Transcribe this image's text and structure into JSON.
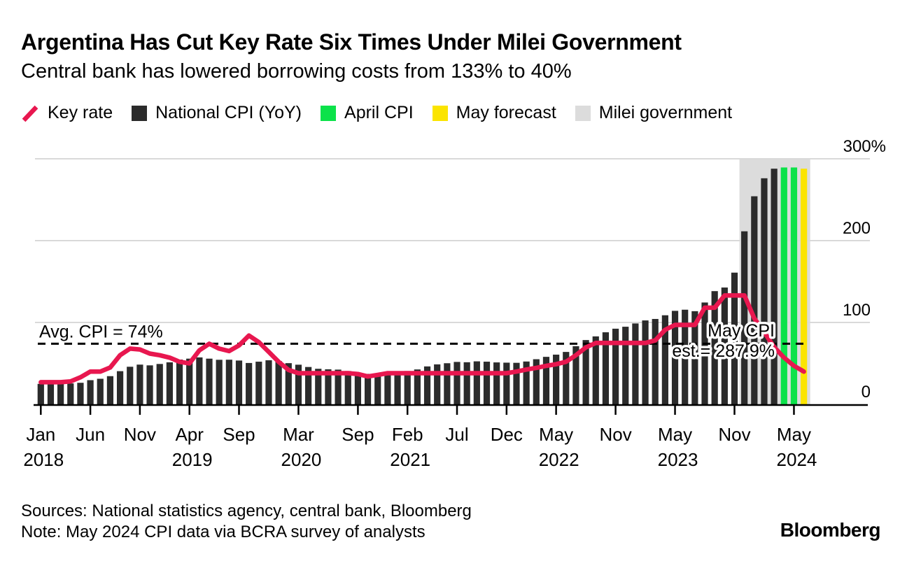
{
  "header": {
    "title": "Argentina Has Cut Key Rate Six Times Under Milei Government",
    "subtitle": "Central bank has lowered borrowing costs from 133% to 40%"
  },
  "legend": {
    "items": [
      {
        "id": "key-rate",
        "type": "line",
        "color": "#e8174f",
        "label": "Key rate"
      },
      {
        "id": "national-cpi",
        "type": "square",
        "color": "#2b2b2b",
        "label": "National CPI (YoY)"
      },
      {
        "id": "april-cpi",
        "type": "square",
        "color": "#0ce24a",
        "label": "April CPI"
      },
      {
        "id": "may-forecast",
        "type": "square",
        "color": "#fbe400",
        "label": "May forecast"
      },
      {
        "id": "milei-government",
        "type": "square",
        "color": "#dcdcdc",
        "label": "Milei government"
      }
    ]
  },
  "footer": {
    "sources": "Sources: National statistics agency, central bank, Bloomberg",
    "note": "Note: May 2024 CPI data via BCRA survey of analysts",
    "logo": "Bloomberg"
  },
  "chart_data": {
    "type": "bar+line",
    "unit": "percent YoY / percent rate",
    "y_axis": {
      "min": 0,
      "max": 300,
      "ticks": [
        {
          "value": 0,
          "label": "0"
        },
        {
          "value": 100,
          "label": "100"
        },
        {
          "value": 200,
          "label": "200"
        },
        {
          "value": 300,
          "label": "300%"
        }
      ]
    },
    "x_axis": {
      "ticks": [
        {
          "month": "Jan",
          "year": "2018",
          "index": 0
        },
        {
          "month": "Jun",
          "year": "",
          "index": 5
        },
        {
          "month": "Nov",
          "year": "",
          "index": 10
        },
        {
          "month": "Apr",
          "year": "2019",
          "index": 15
        },
        {
          "month": "Sep",
          "year": "",
          "index": 20
        },
        {
          "month": "Mar",
          "year": "2020",
          "index": 26
        },
        {
          "month": "Sep",
          "year": "",
          "index": 32
        },
        {
          "month": "Feb",
          "year": "2021",
          "index": 37
        },
        {
          "month": "Jul",
          "year": "",
          "index": 42
        },
        {
          "month": "Dec",
          "year": "",
          "index": 47
        },
        {
          "month": "May",
          "year": "2022",
          "index": 52
        },
        {
          "month": "Nov",
          "year": "",
          "index": 58
        },
        {
          "month": "May",
          "year": "2023",
          "index": 64
        },
        {
          "month": "Nov",
          "year": "",
          "index": 70
        },
        {
          "month": "May",
          "year": "2024",
          "index": 76
        }
      ]
    },
    "bars": {
      "cpi_yoy_by_year": {
        "2018": [
          25.0,
          25.4,
          25.4,
          25.5,
          26.3,
          29.5,
          31.2,
          34.4,
          40.5,
          45.9,
          48.5,
          47.6
        ],
        "2019": [
          49.3,
          51.3,
          54.7,
          55.8,
          57.3,
          55.8,
          54.4,
          54.5,
          53.5,
          50.5,
          52.1,
          53.8
        ],
        "2020": [
          52.9,
          50.3,
          48.4,
          45.6,
          43.4,
          42.8,
          42.4,
          40.7,
          36.6,
          37.2,
          35.8,
          36.1
        ],
        "2021": [
          38.5,
          40.7,
          42.6,
          46.3,
          48.8,
          50.2,
          51.8,
          51.4,
          52.5,
          52.1,
          51.2,
          50.9
        ],
        "2022": [
          50.7,
          52.3,
          55.1,
          58.0,
          60.7,
          64.0,
          71.0,
          78.5,
          83.0,
          88.0,
          92.4,
          94.8
        ],
        "2023": [
          98.8,
          102.5,
          104.3,
          108.8,
          114.2,
          115.6,
          113.8,
          124.4,
          138.3,
          142.7,
          160.9,
          211.4
        ],
        "2024": [
          254.2,
          276.2,
          287.9
        ]
      },
      "end_bars": [
        {
          "label": "Apr 2024",
          "series": "april-cpi",
          "value": 289.4
        },
        {
          "label": "May 2024",
          "series": "april-cpi",
          "value": 289.4
        },
        {
          "label": "May 2024",
          "series": "may-forecast",
          "value": 287.9
        }
      ]
    },
    "key_rate_line": {
      "label": "Key rate",
      "values": [
        27,
        27,
        27,
        28,
        33,
        40,
        40,
        45,
        60,
        68,
        67,
        62,
        60,
        57,
        52,
        50,
        66,
        74,
        68,
        65,
        72,
        84,
        76,
        64,
        52,
        42,
        38,
        38,
        38,
        38,
        38,
        38,
        37,
        34,
        36,
        38,
        38,
        38,
        38,
        38,
        38,
        38,
        38,
        38,
        38,
        38,
        38,
        38,
        40,
        42.5,
        44.5,
        47,
        49,
        52,
        60,
        69.5,
        75,
        75,
        75,
        75,
        75,
        75,
        78,
        91,
        97,
        97,
        97,
        118,
        118,
        133,
        133,
        133,
        105,
        88,
        70,
        57,
        47,
        40
      ]
    },
    "annotations": {
      "avg_cpi": {
        "label": "Avg. CPI = 74%",
        "value": 74
      },
      "may_cpi": {
        "line1": "May CPI",
        "line2": "est.= 287.9%"
      }
    },
    "milei_span": {
      "start_index": 71,
      "label": "Milei government"
    }
  }
}
